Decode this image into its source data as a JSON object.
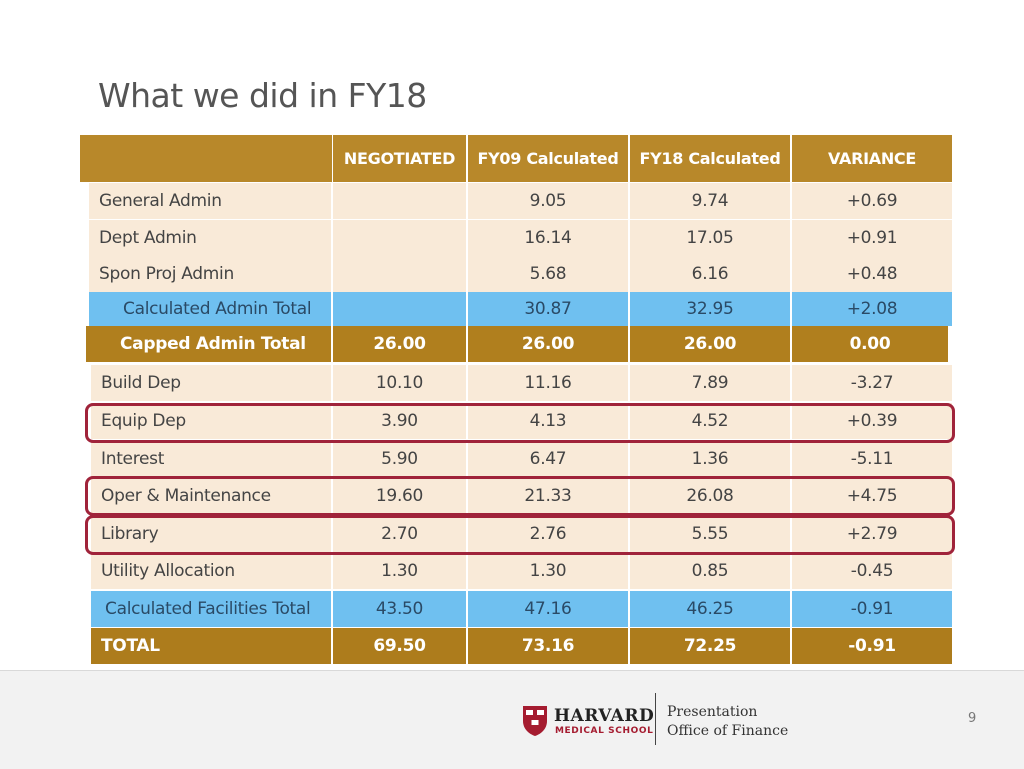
{
  "title": "What we did in FY18",
  "table": {
    "headers": [
      "",
      "NEGOTIATED",
      "FY09 Calculated",
      "FY18 Calculated",
      "VARIANCE"
    ],
    "rows": [
      {
        "label": "General Admin",
        "values": [
          "",
          "9.05",
          "9.74",
          "+0.69"
        ]
      },
      {
        "label": "Dept Admin",
        "values": [
          "",
          "16.14",
          "17.05",
          "+0.91"
        ]
      },
      {
        "label": "Spon Proj Admin",
        "values": [
          "",
          "5.68",
          "6.16",
          "+0.48"
        ]
      },
      {
        "label": "Calculated Admin Total",
        "values": [
          "",
          "30.87",
          "32.95",
          "+2.08"
        ]
      },
      {
        "label": "Capped Admin Total",
        "values": [
          "26.00",
          "26.00",
          "26.00",
          "0.00"
        ]
      },
      {
        "label": "Build Dep",
        "values": [
          "10.10",
          "11.16",
          "7.89",
          "-3.27"
        ]
      },
      {
        "label": "Equip Dep",
        "values": [
          "3.90",
          "4.13",
          "4.52",
          "+0.39"
        ]
      },
      {
        "label": "Interest",
        "values": [
          "5.90",
          "6.47",
          "1.36",
          "-5.11"
        ]
      },
      {
        "label": "Oper & Maintenance",
        "values": [
          "19.60",
          "21.33",
          "26.08",
          "+4.75"
        ]
      },
      {
        "label": "Library",
        "values": [
          "2.70",
          "2.76",
          "5.55",
          "+2.79"
        ]
      },
      {
        "label": "Utility Allocation",
        "values": [
          "1.30",
          "1.30",
          "0.85",
          "-0.45"
        ]
      },
      {
        "label": "Calculated Facilities Total",
        "values": [
          "43.50",
          "47.16",
          "46.25",
          "-0.91"
        ]
      },
      {
        "label": "TOTAL",
        "values": [
          "69.50",
          "73.16",
          "72.25",
          "-0.91"
        ]
      }
    ]
  },
  "footer": {
    "logo_name": "HARVARD",
    "logo_sub": "MEDICAL SCHOOL",
    "line1": "Presentation",
    "line2": "Office of Finance",
    "page_number": "9"
  },
  "colors": {
    "header": "#b8882a",
    "row_beige": "#f9ead8",
    "row_blue": "#6fc0f0",
    "row_gold": "#b07f1e",
    "highlight_outline": "#a0233a"
  }
}
